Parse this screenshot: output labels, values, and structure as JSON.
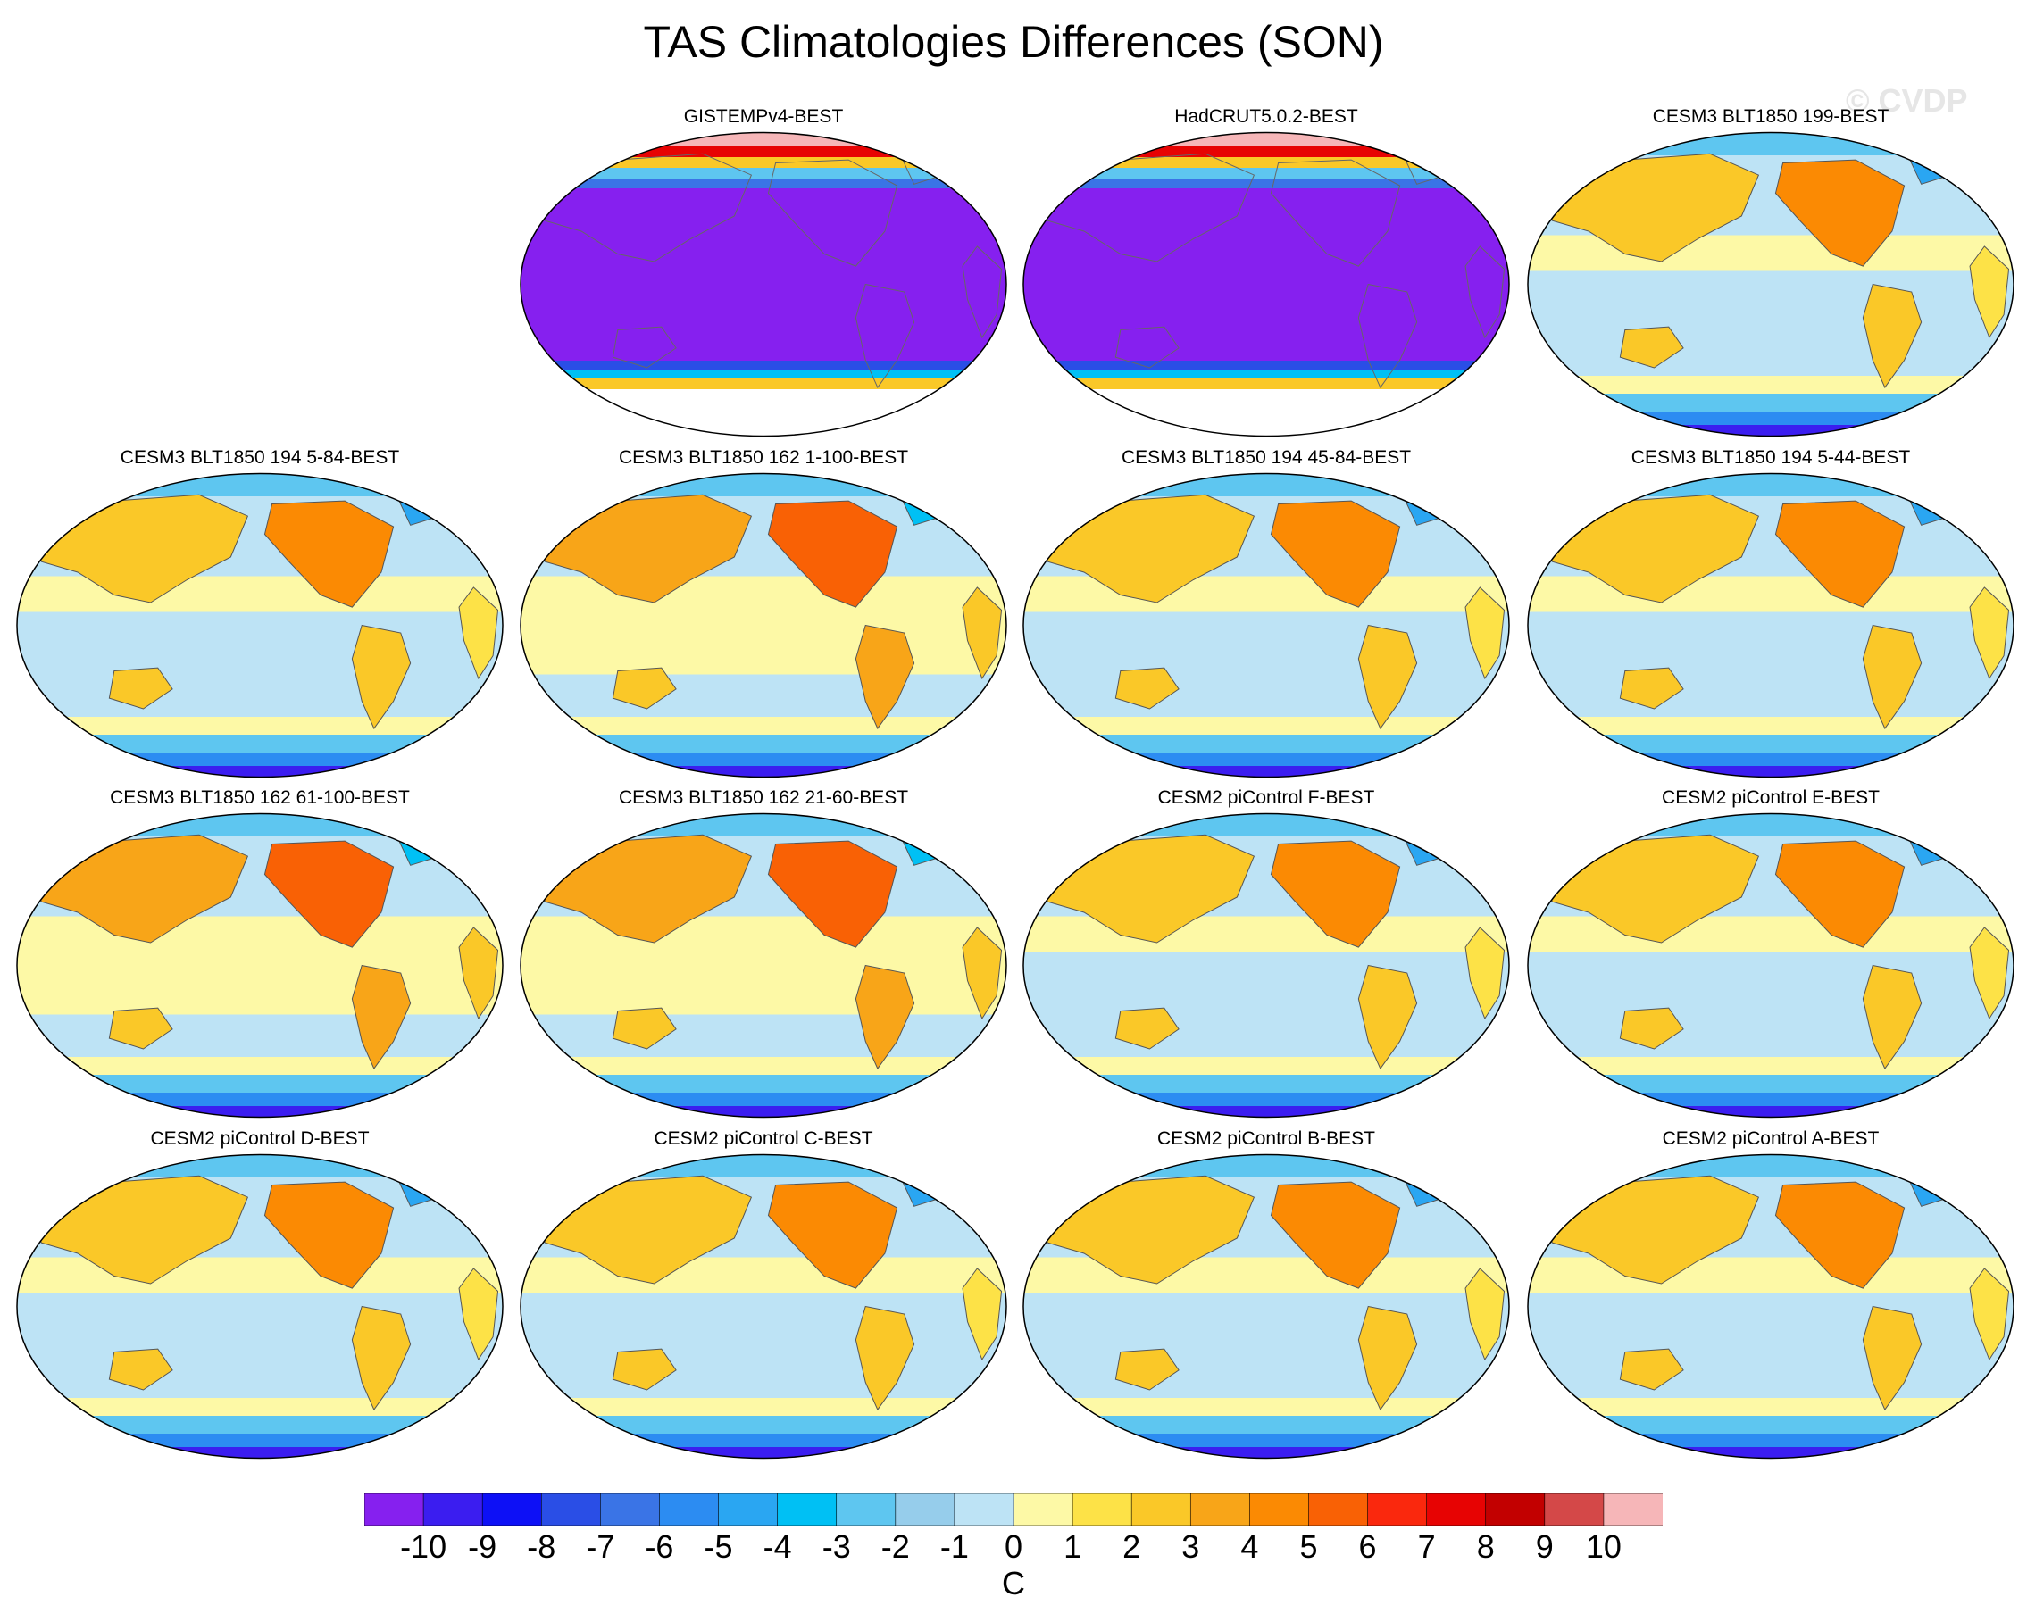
{
  "title": "TAS Climatologies Differences (SON)",
  "watermark": "© CVDP",
  "chart_data": {
    "type": "heatmap",
    "title": "TAS Climatologies Differences (SON)",
    "projection": "global map panels",
    "colorbar": {
      "unit": "C",
      "ticks": [
        "-10",
        "-9",
        "-8",
        "-7",
        "-6",
        "-5",
        "-4",
        "-3",
        "-2",
        "-1",
        "0",
        "1",
        "2",
        "3",
        "4",
        "5",
        "6",
        "7",
        "8",
        "9",
        "10"
      ],
      "colors": [
        "#8620ef",
        "#3b1df0",
        "#0d10f6",
        "#2a4ee6",
        "#3a74e6",
        "#2c8cf2",
        "#2aa6f2",
        "#00c0f4",
        "#5ec6f0",
        "#96cdeb",
        "#bde3f5",
        "#fdf9a6",
        "#fde247",
        "#fac828",
        "#f8a518",
        "#fb8a03",
        "#f96105",
        "#fa280d",
        "#e70303",
        "#c20000",
        "#d44848",
        "#f6b6b8"
      ]
    },
    "panels": [
      {
        "label": "GISTEMPv4-BEST",
        "pattern": "obs"
      },
      {
        "label": "HadCRUT5.0.2-BEST",
        "pattern": "obs"
      },
      {
        "label": "CESM3 BLT1850 199-BEST",
        "pattern": "model"
      },
      {
        "label": "CESM3 BLT1850 194 5-84-BEST",
        "pattern": "model"
      },
      {
        "label": "CESM3 BLT1850 162 1-100-BEST",
        "pattern": "model-warm"
      },
      {
        "label": "CESM3 BLT1850 194 45-84-BEST",
        "pattern": "model"
      },
      {
        "label": "CESM3 BLT1850 194 5-44-BEST",
        "pattern": "model"
      },
      {
        "label": "CESM3 BLT1850 162 61-100-BEST",
        "pattern": "model-warm"
      },
      {
        "label": "CESM3 BLT1850 162 21-60-BEST",
        "pattern": "model-warm"
      },
      {
        "label": "CESM2 piControl F-BEST",
        "pattern": "model"
      },
      {
        "label": "CESM2 piControl E-BEST",
        "pattern": "model"
      },
      {
        "label": "CESM2 piControl D-BEST",
        "pattern": "model"
      },
      {
        "label": "CESM2 piControl C-BEST",
        "pattern": "model"
      },
      {
        "label": "CESM2 piControl B-BEST",
        "pattern": "model"
      },
      {
        "label": "CESM2 piControl A-BEST",
        "pattern": "model"
      }
    ]
  }
}
